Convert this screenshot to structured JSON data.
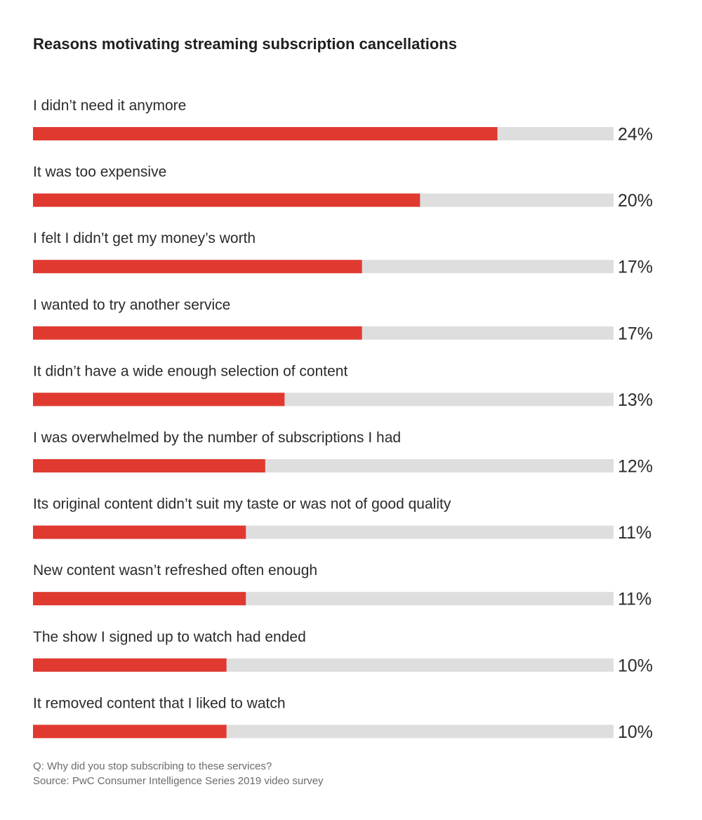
{
  "chart_data": {
    "type": "bar",
    "orientation": "horizontal",
    "title": "Reasons motivating streaming subscription cancellations",
    "categories": [
      "I didn’t need it anymore",
      "It was too expensive",
      "I felt I didn’t get my money’s worth",
      "I wanted to try another service",
      "It didn’t have a wide enough selection of content",
      "I was overwhelmed by the number of subscriptions I had",
      "Its original content didn’t suit my taste or was not of good quality",
      "New content wasn’t refreshed often enough",
      "The show I signed up to watch had ended",
      "It removed content that I liked to watch"
    ],
    "values": [
      24,
      20,
      17,
      17,
      13,
      12,
      11,
      11,
      10,
      10
    ],
    "value_labels": [
      "24%",
      "20%",
      "17%",
      "17%",
      "13%",
      "12%",
      "11%",
      "11%",
      "10%",
      "10%"
    ],
    "xlim": [
      0,
      30
    ],
    "unit": "%",
    "grid": false,
    "legend": "none",
    "colors": {
      "bar": "#e03a30",
      "track": "#dedede"
    }
  },
  "footnotes": {
    "question": "Q: Why did you stop subscribing to these services?",
    "source": "Source: PwC Consumer Intelligence Series 2019 video survey"
  }
}
